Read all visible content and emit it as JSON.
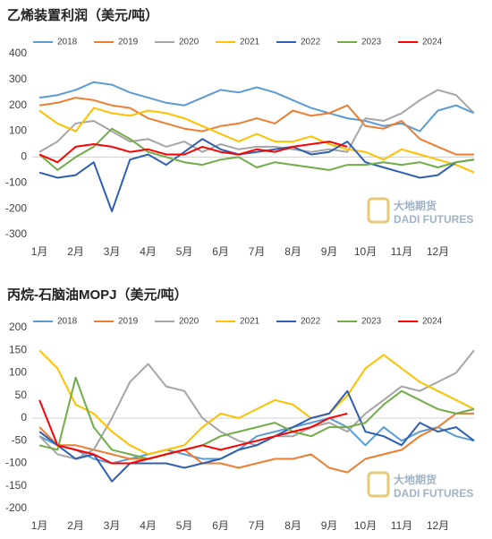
{
  "chart_data": [
    {
      "type": "line",
      "title": "乙烯装置利润（美元/吨）",
      "x": [
        1,
        1.5,
        2,
        2.5,
        3,
        3.5,
        4,
        4.5,
        5,
        5.5,
        6,
        6.5,
        7,
        7.5,
        8,
        8.5,
        9,
        9.5,
        10,
        10.5,
        11,
        11.5,
        12,
        12.5,
        13
      ],
      "xlim": [
        0.8,
        13
      ],
      "xticks": [
        {
          "value": 1,
          "label": "1月"
        },
        {
          "value": 2,
          "label": "2月"
        },
        {
          "value": 3,
          "label": "3月"
        },
        {
          "value": 4,
          "label": "4月"
        },
        {
          "value": 5,
          "label": "5月"
        },
        {
          "value": 6,
          "label": "6月"
        },
        {
          "value": 7,
          "label": "7月"
        },
        {
          "value": 8,
          "label": "8月"
        },
        {
          "value": 9,
          "label": "9月"
        },
        {
          "value": 10,
          "label": "10月"
        },
        {
          "value": 11,
          "label": "11月"
        },
        {
          "value": 12,
          "label": "12月"
        }
      ],
      "ylim": [
        -300,
        400
      ],
      "yticks": [
        -300,
        -200,
        -100,
        0,
        100,
        200,
        300,
        400
      ],
      "watermark": "大地期货",
      "watermark_sub": "DADI FUTURES",
      "series": [
        {
          "name": "2018",
          "color": "#5b9bd5",
          "values": [
            230,
            240,
            260,
            290,
            280,
            250,
            230,
            210,
            200,
            230,
            260,
            250,
            270,
            250,
            220,
            190,
            170,
            150,
            140,
            120,
            130,
            100,
            180,
            200,
            170
          ]
        },
        {
          "name": "2019",
          "color": "#ed7d31",
          "values": [
            200,
            210,
            230,
            220,
            200,
            190,
            150,
            130,
            110,
            100,
            120,
            130,
            150,
            130,
            180,
            160,
            170,
            200,
            120,
            110,
            140,
            70,
            40,
            10,
            10
          ]
        },
        {
          "name": "2020",
          "color": "#a5a5a5",
          "values": [
            20,
            60,
            130,
            140,
            100,
            60,
            70,
            40,
            60,
            20,
            50,
            30,
            40,
            40,
            30,
            20,
            30,
            20,
            150,
            140,
            170,
            220,
            260,
            240,
            170
          ]
        },
        {
          "name": "2021",
          "color": "#ffc000",
          "values": [
            180,
            130,
            100,
            190,
            170,
            160,
            180,
            170,
            150,
            120,
            90,
            60,
            90,
            60,
            60,
            80,
            50,
            30,
            20,
            -10,
            30,
            10,
            -10,
            -30,
            -60
          ]
        },
        {
          "name": "2022",
          "color": "#2f5fb3",
          "values": [
            -60,
            -80,
            -70,
            -20,
            -210,
            -10,
            10,
            -30,
            20,
            70,
            30,
            10,
            20,
            30,
            40,
            10,
            20,
            60,
            -20,
            -40,
            -60,
            -80,
            -70,
            -20,
            -10
          ]
        },
        {
          "name": "2023",
          "color": "#70ad47",
          "values": [
            10,
            -50,
            0,
            40,
            110,
            70,
            20,
            0,
            -20,
            -30,
            -10,
            0,
            -40,
            -20,
            -30,
            -40,
            -50,
            -30,
            -30,
            -20,
            -30,
            -20,
            -40,
            -20,
            -10
          ]
        },
        {
          "name": "2024",
          "color": "#ff0000",
          "values": [
            10,
            -20,
            40,
            50,
            40,
            20,
            30,
            10,
            10,
            40,
            20,
            10,
            30,
            20,
            40,
            50,
            60,
            40,
            null,
            null,
            null,
            null,
            null,
            null,
            null
          ]
        }
      ]
    },
    {
      "type": "line",
      "title": "丙烷-石脑油MOPJ（美元/吨）",
      "x": [
        1,
        1.5,
        2,
        2.5,
        3,
        3.5,
        4,
        4.5,
        5,
        5.5,
        6,
        6.5,
        7,
        7.5,
        8,
        8.5,
        9,
        9.5,
        10,
        10.5,
        11,
        11.5,
        12,
        12.5,
        13
      ],
      "xlim": [
        0.8,
        13
      ],
      "xticks": [
        {
          "value": 1,
          "label": "1月"
        },
        {
          "value": 2,
          "label": "2月"
        },
        {
          "value": 3,
          "label": "3月"
        },
        {
          "value": 4,
          "label": "4月"
        },
        {
          "value": 5,
          "label": "5月"
        },
        {
          "value": 6,
          "label": "6月"
        },
        {
          "value": 7,
          "label": "7月"
        },
        {
          "value": 8,
          "label": "8月"
        },
        {
          "value": 9,
          "label": "9月"
        },
        {
          "value": 10,
          "label": "10月"
        },
        {
          "value": 11,
          "label": "11月"
        },
        {
          "value": 12,
          "label": "12月"
        }
      ],
      "ylim": [
        -200,
        200
      ],
      "yticks": [
        -200,
        -150,
        -100,
        -50,
        0,
        50,
        100,
        150,
        200
      ],
      "watermark": "大地期货",
      "watermark_sub": "DADI FUTURES",
      "series": [
        {
          "name": "2018",
          "color": "#5b9bd5",
          "values": [
            -40,
            -60,
            -70,
            -90,
            -100,
            -90,
            -80,
            -70,
            -80,
            -90,
            -90,
            -70,
            -40,
            -30,
            -20,
            -10,
            0,
            -20,
            -60,
            -20,
            -50,
            -30,
            -20,
            -40,
            -50
          ]
        },
        {
          "name": "2019",
          "color": "#ed7d31",
          "values": [
            -20,
            -60,
            -60,
            -70,
            -80,
            -90,
            -90,
            -80,
            -70,
            -100,
            -100,
            -110,
            -100,
            -90,
            -90,
            -80,
            -110,
            -120,
            -90,
            -80,
            -70,
            -40,
            -20,
            10,
            10
          ]
        },
        {
          "name": "2020",
          "color": "#a5a5a5",
          "values": [
            -40,
            -80,
            -90,
            -70,
            0,
            80,
            120,
            70,
            60,
            0,
            -30,
            -50,
            -60,
            -40,
            -40,
            -20,
            -10,
            -30,
            10,
            40,
            70,
            60,
            80,
            100,
            150
          ]
        },
        {
          "name": "2021",
          "color": "#ffc000",
          "values": [
            150,
            110,
            30,
            10,
            -30,
            -60,
            -80,
            -70,
            -60,
            -20,
            10,
            0,
            20,
            40,
            30,
            0,
            10,
            50,
            110,
            140,
            110,
            80,
            60,
            40,
            20
          ]
        },
        {
          "name": "2022",
          "color": "#2f5fb3",
          "values": [
            -30,
            -60,
            -90,
            -80,
            -140,
            -100,
            -100,
            -100,
            -110,
            -100,
            -90,
            -70,
            -60,
            -40,
            -20,
            0,
            10,
            60,
            -30,
            -40,
            -60,
            -10,
            -30,
            -20,
            -50
          ]
        },
        {
          "name": "2023",
          "color": "#70ad47",
          "values": [
            -60,
            -70,
            90,
            -20,
            -70,
            -80,
            -90,
            -80,
            -70,
            -60,
            -40,
            -30,
            -20,
            -10,
            -30,
            -40,
            -20,
            -20,
            -10,
            30,
            60,
            40,
            20,
            10,
            20
          ]
        },
        {
          "name": "2024",
          "color": "#ff0000",
          "values": [
            40,
            -60,
            -70,
            -80,
            -100,
            -100,
            -90,
            -80,
            -70,
            -60,
            -70,
            -60,
            -50,
            -40,
            -30,
            -20,
            0,
            10,
            null,
            null,
            null,
            null,
            null,
            null,
            null
          ]
        }
      ]
    }
  ]
}
